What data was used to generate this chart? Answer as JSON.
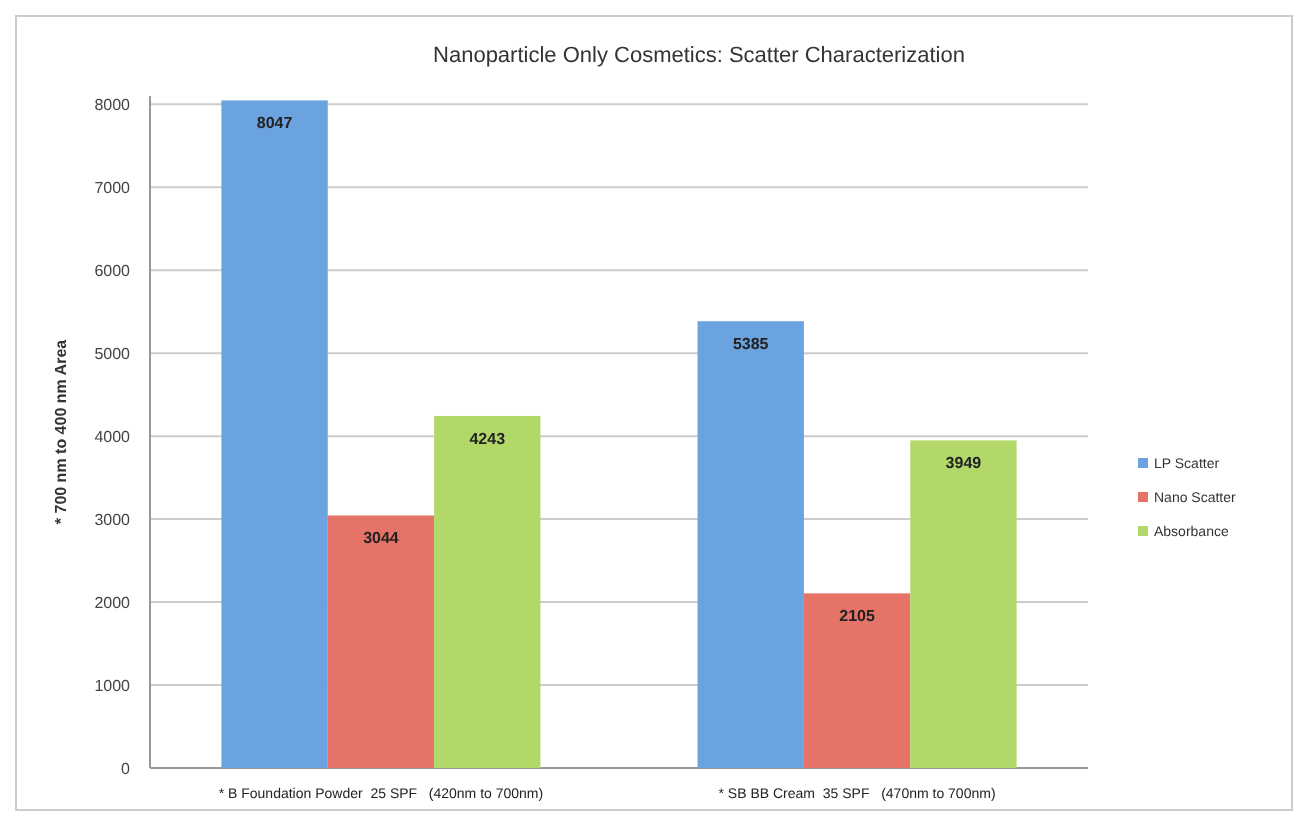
{
  "chart_data": {
    "type": "bar",
    "title": "Nanoparticle Only Cosmetics: Scatter Characterization",
    "ylabel": "* 700 nm to 400 nm   Area",
    "categories": [
      "* B Foundation Powder  25 SPF   (420nm to 700nm)",
      "* SB BB Cream  35 SPF   (470nm to 700nm)"
    ],
    "series": [
      {
        "name": "LP Scatter",
        "color": "#6aa3e0",
        "values": [
          8047,
          5385
        ]
      },
      {
        "name": "Nano Scatter",
        "color": "#e57368",
        "values": [
          3044,
          2105
        ]
      },
      {
        "name": "Absorbance",
        "color": "#b3d86a",
        "values": [
          4243,
          3949
        ]
      }
    ],
    "ylim": [
      0,
      8100
    ],
    "yticks": [
      0,
      1000,
      2000,
      3000,
      4000,
      5000,
      6000,
      7000,
      8000
    ],
    "grid": "y",
    "legend": "right",
    "data_labels": true
  }
}
